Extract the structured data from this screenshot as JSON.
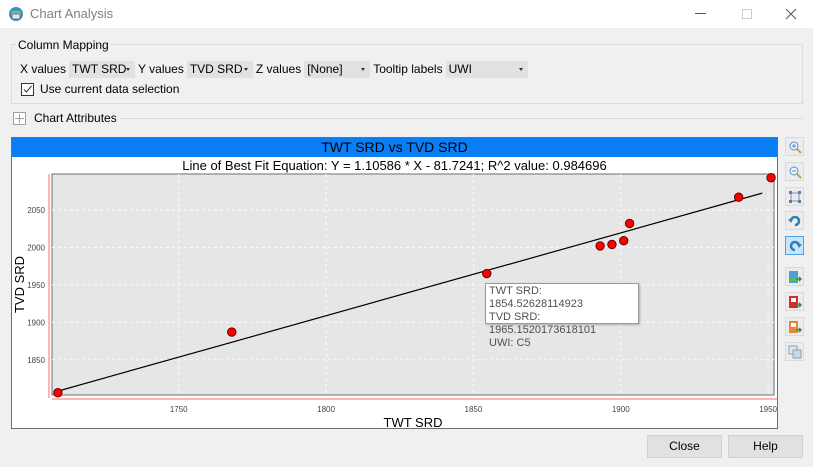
{
  "window": {
    "title": "Chart Analysis",
    "controls": [
      "minimize",
      "maximize",
      "close"
    ]
  },
  "column_mapping": {
    "title": "Column Mapping",
    "x_label": "X values",
    "x_value": "TWT SRD",
    "y_label": "Y values",
    "y_value": "TVD SRD",
    "z_label": "Z values",
    "z_value": "[None]",
    "tooltip_label": "Tooltip labels",
    "tooltip_value": "UWI",
    "use_selection_label": "Use current data selection",
    "use_selection_checked": true
  },
  "chart_attributes": {
    "label": "Chart Attributes",
    "expanded": false
  },
  "chart": {
    "header": "TWT SRD vs TVD SRD",
    "header_color": "#0a7ff5",
    "subtitle": "Line of Best Fit Equation: Y = 1.10586 * X - 81.7241; R^2 value: 0.984696",
    "tooltip": {
      "line1": "TWT SRD: 1854.52628114923",
      "line2": "TVD SRD: 1965.1520173618101",
      "line3": "UWI: C5"
    }
  },
  "chart_data": {
    "type": "scatter",
    "title": "TWT SRD vs TVD SRD",
    "subtitle": "Line of Best Fit Equation: Y = 1.10586 * X - 81.7241; R^2 value: 0.984696",
    "xlabel": "TWT SRD",
    "ylabel": "TVD SRD",
    "xlim": [
      1707,
      1952
    ],
    "ylim": [
      1803,
      2098
    ],
    "xticks": [
      1750,
      1800,
      1850,
      1900,
      1950
    ],
    "yticks": [
      1850,
      1900,
      1950,
      2000,
      2050
    ],
    "grid": true,
    "marker_color": "#ff0000",
    "points": [
      {
        "x": 1709,
        "y": 1806
      },
      {
        "x": 1768,
        "y": 1887
      },
      {
        "x": 1854.53,
        "y": 1965.15,
        "label": "C5"
      },
      {
        "x": 1893,
        "y": 2002
      },
      {
        "x": 1897,
        "y": 2004
      },
      {
        "x": 1901,
        "y": 2009
      },
      {
        "x": 1903,
        "y": 2032
      },
      {
        "x": 1940,
        "y": 2067
      },
      {
        "x": 1951,
        "y": 2093
      }
    ],
    "fit_line": {
      "slope": 1.10586,
      "intercept": -81.7241,
      "r2": 0.984696
    }
  },
  "toolbar": {
    "buttons": [
      "zoom-in",
      "zoom-out",
      "fit-all",
      "undo",
      "redo-active",
      "export-excel",
      "export-pdf",
      "export-powerpoint",
      "copy"
    ]
  },
  "footer": {
    "close_label": "Close",
    "help_label": "Help"
  }
}
